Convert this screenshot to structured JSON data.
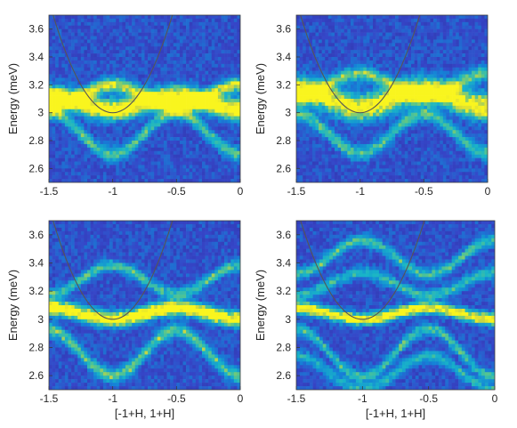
{
  "colors": {
    "background": "#2b2f9e",
    "low": "#3c46c4",
    "mid": "#18b3d9",
    "high": "#f4f025",
    "curve": "#555555"
  },
  "chart_data": [
    {
      "type": "heatmap",
      "colormap": "parula",
      "xlim": [
        -1.5,
        0
      ],
      "ylim": [
        2.5,
        3.7
      ],
      "xticks": [
        "-1.5",
        "-1",
        "-0.5",
        "0"
      ],
      "yticks": [
        "2.6",
        "2.8",
        "3",
        "3.2",
        "3.4",
        "3.6"
      ],
      "xlabel": "",
      "ylabel": "Energy (meV)",
      "bands": [
        {
          "base": 3.07,
          "amp": -0.05,
          "intensity": 1.0,
          "width": 0.07
        },
        {
          "base": 3.12,
          "amp": 0.08,
          "intensity": 0.7,
          "width": 0.05
        },
        {
          "base": 2.85,
          "amp": -0.15,
          "intensity": 0.45,
          "width": 0.05
        }
      ],
      "parabola": {
        "x0": -1.0,
        "e0": 3.0,
        "k": 3.2
      }
    },
    {
      "type": "heatmap",
      "colormap": "parula",
      "xlim": [
        -1.5,
        0
      ],
      "ylim": [
        2.5,
        3.7
      ],
      "xticks": [
        "-1.5",
        "-1",
        "-0.5",
        "0"
      ],
      "yticks": [
        "2.6",
        "2.8",
        "3",
        "3.2",
        "3.4",
        "3.6"
      ],
      "xlabel": "",
      "ylabel": "Energy (meV)",
      "bands": [
        {
          "base": 3.1,
          "amp": -0.06,
          "intensity": 0.9,
          "width": 0.09
        },
        {
          "base": 3.2,
          "amp": 0.08,
          "intensity": 0.55,
          "width": 0.05
        },
        {
          "base": 2.85,
          "amp": -0.14,
          "intensity": 0.45,
          "width": 0.05
        }
      ],
      "parabola": {
        "x0": -1.0,
        "e0": 3.0,
        "k": 3.2
      }
    },
    {
      "type": "heatmap",
      "colormap": "parula",
      "xlim": [
        -1.5,
        0
      ],
      "ylim": [
        2.5,
        3.7
      ],
      "xticks": [
        "-1.5",
        "-1",
        "-0.5",
        "0"
      ],
      "yticks": [
        "2.6",
        "2.8",
        "3",
        "3.2",
        "3.4",
        "3.6"
      ],
      "xlabel": "[-1+H, 1+H]",
      "ylabel": "Energy (meV)",
      "bands": [
        {
          "base": 3.04,
          "amp": -0.04,
          "intensity": 1.0,
          "width": 0.05
        },
        {
          "base": 3.28,
          "amp": 0.1,
          "intensity": 0.45,
          "width": 0.04
        },
        {
          "base": 2.76,
          "amp": -0.16,
          "intensity": 0.5,
          "width": 0.05
        }
      ],
      "parabola": {
        "x0": -1.0,
        "e0": 3.0,
        "k": 3.2
      }
    },
    {
      "type": "heatmap",
      "colormap": "parula",
      "xlim": [
        -1.5,
        0
      ],
      "ylim": [
        2.5,
        3.7
      ],
      "xticks": [
        "-1.5",
        "-1",
        "-0.5",
        "0"
      ],
      "yticks": [
        "2.6",
        "2.8",
        "3",
        "3.2",
        "3.4",
        "3.6"
      ],
      "xlabel": "[-1+H, 1+H]",
      "ylabel": "Energy (meV)",
      "bands": [
        {
          "base": 3.04,
          "amp": -0.04,
          "intensity": 0.9,
          "width": 0.04
        },
        {
          "base": 3.44,
          "amp": 0.12,
          "intensity": 0.45,
          "width": 0.04
        },
        {
          "base": 3.25,
          "amp": 0.08,
          "intensity": 0.4,
          "width": 0.04
        },
        {
          "base": 2.76,
          "amp": -0.17,
          "intensity": 0.45,
          "width": 0.04
        },
        {
          "base": 2.62,
          "amp": -0.12,
          "intensity": 0.35,
          "width": 0.04
        }
      ],
      "parabola": {
        "x0": -1.0,
        "e0": 3.0,
        "k": 3.2
      }
    }
  ]
}
